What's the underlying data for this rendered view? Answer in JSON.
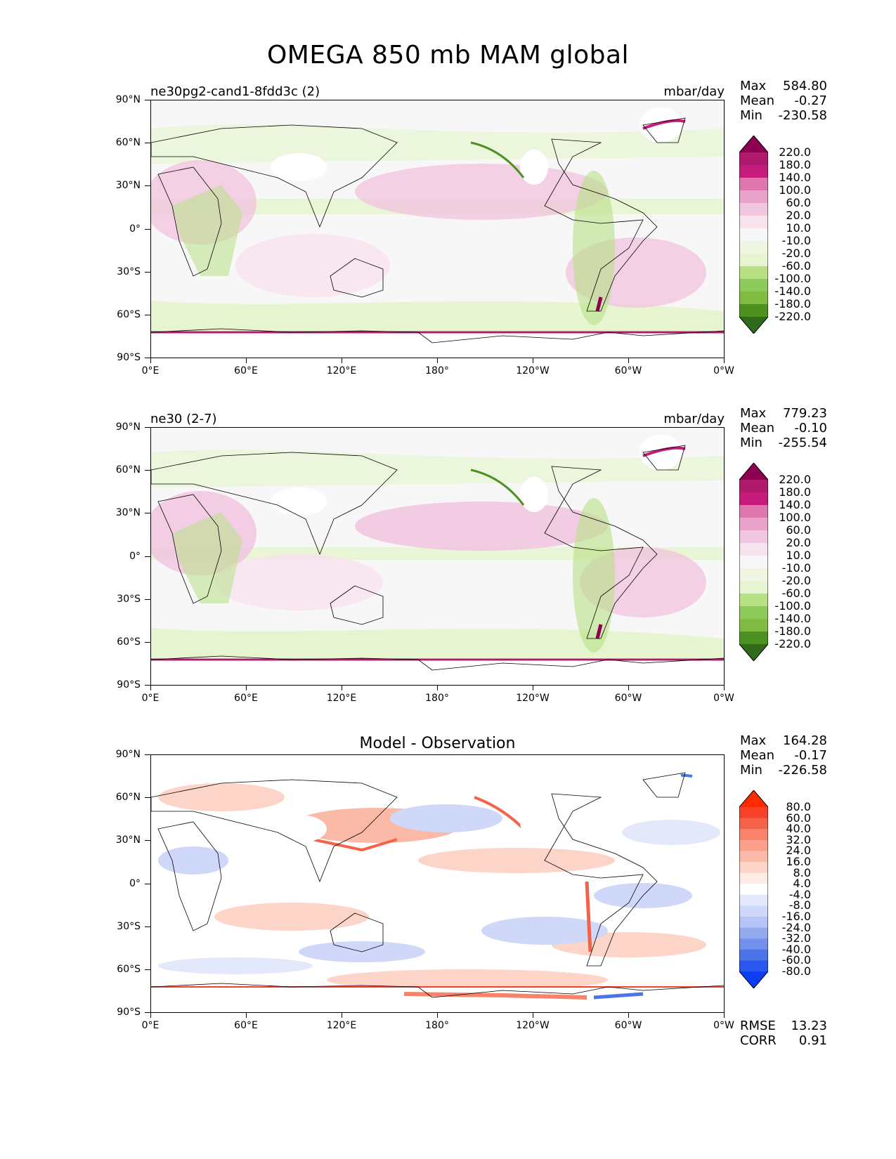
{
  "figure": {
    "title": "OMEGA 850 mb MAM global",
    "x_ticks": [
      "0°E",
      "60°E",
      "120°E",
      "180°",
      "120°W",
      "60°W",
      "0°W"
    ],
    "y_ticks": [
      "90°N",
      "60°N",
      "30°N",
      "0°",
      "30°S",
      "60°S",
      "90°S"
    ]
  },
  "panels": [
    {
      "label_left": "ne30pg2-cand1-8fdd3c (2)",
      "label_right": "mbar/day",
      "stats": [
        {
          "label": "Max",
          "value": "584.80"
        },
        {
          "label": "Mean",
          "value": "-0.27"
        },
        {
          "label": "Min",
          "value": "-230.58"
        }
      ]
    },
    {
      "label_left": "ne30 (2-7)",
      "label_right": "mbar/day",
      "stats": [
        {
          "label": "Max",
          "value": "779.23"
        },
        {
          "label": "Mean",
          "value": "-0.10"
        },
        {
          "label": "Min",
          "value": "-255.54"
        }
      ]
    },
    {
      "label_center": "Model - Observation",
      "stats": [
        {
          "label": "Max",
          "value": "164.28"
        },
        {
          "label": "Mean",
          "value": "-0.17"
        },
        {
          "label": "Min",
          "value": "-226.58"
        }
      ],
      "metrics": [
        {
          "label": "RMSE",
          "value": "13.23"
        },
        {
          "label": "CORR",
          "value": "0.91"
        }
      ]
    }
  ],
  "colorbars": {
    "field": {
      "labels": [
        "220.0",
        "180.0",
        "140.0",
        "100.0",
        "60.0",
        "20.0",
        "10.0",
        "-10.0",
        "-20.0",
        "-60.0",
        "-100.0",
        "-140.0",
        "-180.0",
        "-220.0"
      ],
      "colors": [
        "#8e0152",
        "#b01a6c",
        "#c51b7d",
        "#de77ae",
        "#e9a3c9",
        "#f1c6df",
        "#f7e3ee",
        "#f7f7f7",
        "#eef5e1",
        "#e6f5d0",
        "#b8e186",
        "#8ec95c",
        "#7fbc41",
        "#4d9221",
        "#2f6b1a"
      ]
    },
    "diff": {
      "labels": [
        "80.0",
        "60.0",
        "40.0",
        "32.0",
        "24.0",
        "16.0",
        "8.0",
        "4.0",
        "-4.0",
        "-8.0",
        "-16.0",
        "-24.0",
        "-32.0",
        "-40.0",
        "-60.0",
        "-80.0"
      ],
      "colors": [
        "#ff2a00",
        "#f6412a",
        "#f5624a",
        "#f8826a",
        "#fa9f8a",
        "#fbbaa8",
        "#fcd4c8",
        "#fdebe4",
        "#ffffff",
        "#e3e9fb",
        "#cfd8f8",
        "#b5c5f5",
        "#93aaf0",
        "#7391ec",
        "#4c74e8",
        "#2a57f0",
        "#0d3df5"
      ]
    }
  }
}
